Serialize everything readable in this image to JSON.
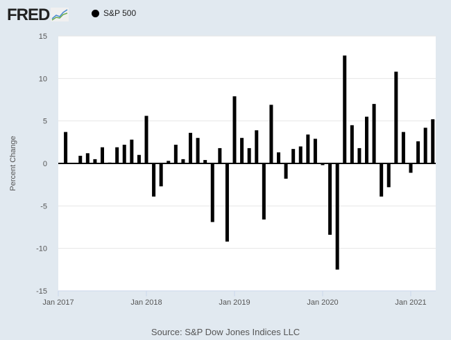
{
  "logo": "FRED",
  "source": "Source: S&P Dow Jones Indices LLC",
  "chart_data": {
    "type": "bar",
    "title": "",
    "ylabel": "Percent Change",
    "xlabel": "",
    "ylim": [
      -15,
      15
    ],
    "yticks": [
      15,
      10,
      5,
      0,
      -5,
      -10,
      -15
    ],
    "xticks": [
      "Jan 2017",
      "Jan 2018",
      "Jan 2019",
      "Jan 2020",
      "Jan 2021"
    ],
    "grid": true,
    "legend_position": "top-left",
    "series": [
      {
        "name": "S&P 500",
        "color": "#000000",
        "x": [
          "2017-02",
          "2017-03",
          "2017-04",
          "2017-05",
          "2017-06",
          "2017-07",
          "2017-08",
          "2017-09",
          "2017-10",
          "2017-11",
          "2017-12",
          "2018-01",
          "2018-02",
          "2018-03",
          "2018-04",
          "2018-05",
          "2018-06",
          "2018-07",
          "2018-08",
          "2018-09",
          "2018-10",
          "2018-11",
          "2018-12",
          "2019-01",
          "2019-02",
          "2019-03",
          "2019-04",
          "2019-05",
          "2019-06",
          "2019-07",
          "2019-08",
          "2019-09",
          "2019-10",
          "2019-11",
          "2019-12",
          "2020-01",
          "2020-02",
          "2020-03",
          "2020-04",
          "2020-05",
          "2020-06",
          "2020-07",
          "2020-08",
          "2020-09",
          "2020-10",
          "2020-11",
          "2020-12",
          "2021-01",
          "2021-02",
          "2021-03",
          "2021-04"
        ],
        "values": [
          3.7,
          0.0,
          0.9,
          1.2,
          0.5,
          1.9,
          0.1,
          1.9,
          2.2,
          2.8,
          1.0,
          5.6,
          -3.9,
          -2.7,
          0.3,
          2.2,
          0.5,
          3.6,
          3.0,
          0.4,
          -6.9,
          1.8,
          -9.2,
          7.9,
          3.0,
          1.8,
          3.9,
          -6.6,
          6.9,
          1.3,
          -1.8,
          1.7,
          2.0,
          3.4,
          2.9,
          -0.2,
          -8.4,
          -12.5,
          12.7,
          4.5,
          1.8,
          5.5,
          7.0,
          -3.9,
          -2.8,
          10.8,
          3.7,
          -1.1,
          2.6,
          4.2,
          5.2
        ]
      }
    ]
  }
}
